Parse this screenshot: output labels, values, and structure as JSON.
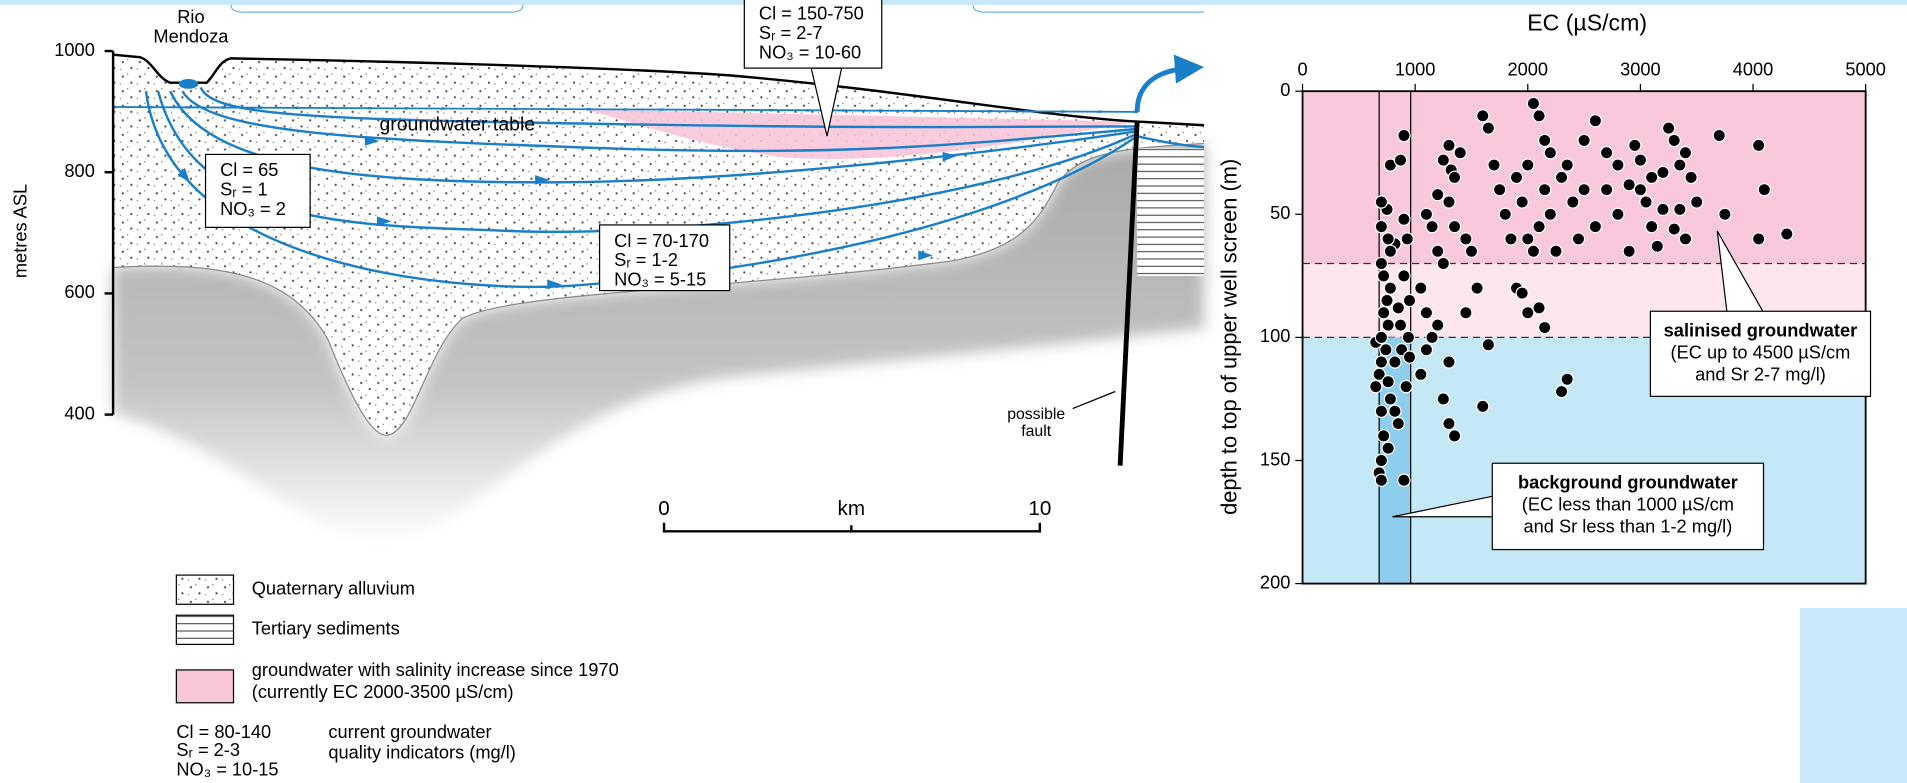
{
  "section": {
    "river": [
      "Rio",
      "Mendoza"
    ],
    "ylabel": "metres ASL",
    "ylim": [
      400,
      1000
    ],
    "yticks": [
      1000,
      800,
      600,
      400
    ],
    "water_table": "groundwater table",
    "fault": [
      "possible",
      "fault"
    ],
    "boxes": [
      [
        "Cl = 150-750",
        "Sᵣ = 2-7",
        "NO₃ = 10-60"
      ],
      [
        "Cl = 65",
        "Sᵣ = 1",
        "NO₃ = 2"
      ],
      [
        "Cl = 70-170",
        "Sᵣ = 1-2",
        "NO₃ = 5-15"
      ]
    ],
    "scale": {
      "ticks": [
        0,
        10
      ],
      "unit": "km"
    }
  },
  "legend": {
    "items": [
      "Quaternary alluvium",
      "Tertiary sediments"
    ],
    "salinity": [
      "groundwater with salinity increase since 1970",
      "(currently EC 2000-3500 µS/cm)"
    ],
    "indicators": [
      "Cl = 80-140",
      "Sᵣ = 2-3",
      "NO₃ = 10-15"
    ],
    "indicator_note": [
      "current groundwater",
      "quality indicators (mg/l)"
    ]
  },
  "chart_data": {
    "type": "scatter",
    "x_label": "EC (µS/cm)",
    "y_label": "depth to top of upper well screen (m)",
    "xlim": [
      0,
      5000
    ],
    "ylim": [
      0,
      200
    ],
    "y_inverted": true,
    "xticks": [
      0,
      1000,
      2000,
      3000,
      4000,
      5000
    ],
    "yticks": [
      0,
      50,
      100,
      150,
      200
    ],
    "color": "#000000",
    "bands": [
      {
        "from": 0,
        "to": 70,
        "color": "#f9c8dc"
      },
      {
        "from": 70,
        "to": 100,
        "color": "#fde6ee"
      },
      {
        "from": 100,
        "to": 200,
        "color": "#c5e8f7"
      }
    ],
    "background_column": [
      680,
      960
    ],
    "x": [
      650,
      680,
      700,
      720,
      650,
      700,
      750,
      700,
      720,
      760,
      700,
      740,
      680,
      760,
      700,
      780,
      820,
      850,
      760,
      700,
      900,
      820,
      880,
      870,
      850,
      900,
      820,
      930,
      900,
      750,
      780,
      870,
      700,
      700,
      780,
      900,
      950,
      920,
      940,
      950,
      720,
      780,
      760,
      1100,
      1150,
      1200,
      1250,
      1300,
      1320,
      1350,
      1200,
      1250,
      1300,
      1350,
      1400,
      1450,
      1500,
      1550,
      1600,
      1650,
      1700,
      1750,
      1800,
      1850,
      1900,
      1950,
      2000,
      2050,
      2100,
      2150,
      2200,
      2000,
      2050,
      2100,
      2150,
      2200,
      2250,
      2300,
      2350,
      2400,
      2450,
      2500,
      1050,
      1100,
      1150,
      1200,
      1300,
      1350,
      1300,
      1250,
      1600,
      1650,
      1450,
      1900,
      1950,
      2000,
      2100,
      2150,
      2300,
      2350,
      1100,
      1050,
      2600,
      2700,
      2800,
      2900,
      2950,
      3000,
      3050,
      3100,
      3150,
      3200,
      3250,
      3300,
      3350,
      3400,
      3450,
      3200,
      3300,
      3400,
      3500,
      3700,
      3750,
      4050,
      4100,
      4050,
      4300,
      2800,
      2900,
      2700,
      2600,
      2500,
      3000,
      3100,
      3350
    ],
    "values": [
      120,
      155,
      150,
      140,
      102,
      110,
      85,
      70,
      75,
      95,
      100,
      105,
      115,
      118,
      130,
      125,
      130,
      135,
      145,
      158,
      158,
      110,
      105,
      95,
      88,
      75,
      62,
      60,
      52,
      48,
      30,
      28,
      45,
      55,
      65,
      18,
      85,
      120,
      100,
      108,
      90,
      80,
      60,
      50,
      55,
      42,
      28,
      22,
      32,
      35,
      65,
      70,
      45,
      55,
      25,
      60,
      65,
      80,
      10,
      15,
      30,
      40,
      50,
      60,
      35,
      45,
      30,
      5,
      10,
      20,
      25,
      60,
      65,
      55,
      40,
      50,
      65,
      35,
      30,
      45,
      60,
      40,
      80,
      90,
      100,
      95,
      110,
      140,
      135,
      125,
      128,
      103,
      90,
      80,
      82,
      90,
      88,
      96,
      122,
      117,
      105,
      115,
      12,
      25,
      30,
      38,
      22,
      28,
      45,
      55,
      63,
      33,
      15,
      20,
      30,
      25,
      35,
      48,
      56,
      60,
      45,
      18,
      50,
      22,
      40,
      60,
      58,
      50,
      65,
      40,
      55,
      20,
      40,
      35,
      48
    ],
    "annotations": {
      "salinised": [
        "salinised groundwater",
        "(EC up to 4500 µS/cm",
        "and Sr 2-7 mg/l)"
      ],
      "background": [
        "background groundwater",
        "(EC less than 1000 µS/cm",
        "and Sr less than 1-2 mg/l)"
      ]
    }
  }
}
